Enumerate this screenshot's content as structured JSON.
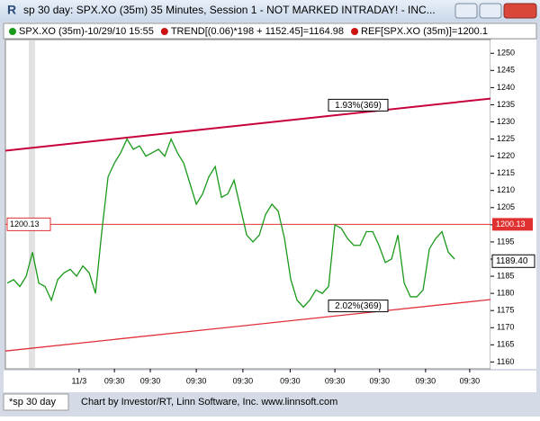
{
  "chart_data": {
    "type": "line",
    "window_title": "sp 30 day: SPX.XO (35m) 35 Minutes, Session 1 - NOT MARKED INTRADAY! - INC...",
    "legend_items": [
      {
        "text": "SPX.XO (35m)-10/29/10 15:55",
        "color": "#1a9a1a"
      },
      {
        "text": "TREND[(0.06)*198 + 1152.45]=1164.98",
        "color": "#cc1111"
      },
      {
        "text": "REF[SPX.XO (35m)]=1200.1",
        "color": "#cc1111"
      }
    ],
    "footer_tab": "*sp 30 day",
    "footer": "Chart by Investor/RT, Linn Software, Inc. www.linnsoft.com",
    "series": [
      {
        "name": "SPX.XO (35m)",
        "color": "#1a9a1a",
        "x": [
          0,
          1,
          2,
          3,
          4,
          5,
          6,
          7,
          8,
          9,
          10,
          11,
          12,
          13,
          14,
          15,
          16,
          17,
          18,
          19,
          20,
          21,
          22,
          23,
          24,
          25,
          26,
          27,
          28,
          29,
          30,
          31,
          32,
          33,
          34,
          35,
          36,
          37,
          38,
          39,
          40,
          41,
          42,
          43,
          44,
          45,
          46,
          47,
          48,
          49,
          50,
          51,
          52,
          53,
          54,
          55,
          56,
          57,
          58,
          59,
          60,
          61,
          62,
          63,
          64,
          65,
          66,
          67,
          68,
          69,
          70,
          71
        ],
        "values": [
          1183,
          1184,
          1182,
          1185,
          1192,
          1183,
          1182,
          1178,
          1184,
          1186,
          1187,
          1185,
          1188,
          1186,
          1180,
          1198,
          1214,
          1218,
          1221,
          1225,
          1222,
          1223,
          1220,
          1221,
          1222,
          1220,
          1225,
          1221,
          1218,
          1212,
          1206,
          1209,
          1214,
          1217,
          1208,
          1209,
          1213,
          1205,
          1197,
          1195,
          1197,
          1203,
          1206,
          1204,
          1196,
          1184,
          1178,
          1176,
          1178,
          1181,
          1180,
          1182,
          1200,
          1199,
          1196,
          1194,
          1194,
          1198,
          1198,
          1194,
          1189,
          1190,
          1197,
          1183,
          1179,
          1179,
          1181,
          1193,
          1196,
          1198,
          1192,
          1190
        ]
      }
    ],
    "trendlines": [
      {
        "label": "1.93%(369)",
        "x": [
          -0.3,
          76.7
        ],
        "y": [
          1221.6,
          1236.8
        ],
        "color": "#c8003c"
      },
      {
        "label": "2.02%(369)",
        "x": [
          -0.3,
          76.7
        ],
        "y": [
          1163.2,
          1178.2
        ],
        "color": "#e0303a"
      }
    ],
    "ref_line": {
      "value": 1200.13,
      "color": "#e03030"
    },
    "last_price": {
      "value": 1189.4,
      "label": "1189.40"
    },
    "xlim": [
      -0.3,
      76.7
    ],
    "xticks": [
      {
        "value": 11.4,
        "label": "11/3"
      },
      {
        "value": 17,
        "label": "09:30"
      },
      {
        "value": 22.7,
        "label": "09:30"
      },
      {
        "value": 30,
        "label": "09:30"
      },
      {
        "value": 37.4,
        "label": "09:30"
      },
      {
        "value": 44.9,
        "label": "09:30"
      },
      {
        "value": 52,
        "label": "09:30"
      },
      {
        "value": 59.1,
        "label": "09:30"
      },
      {
        "value": 66.4,
        "label": "09:30"
      },
      {
        "value": 73.4,
        "label": "09:30"
      }
    ],
    "ylim": [
      1158,
      1254
    ],
    "yticks": [
      1160,
      1165,
      1170,
      1175,
      1180,
      1185,
      1190,
      1195,
      1200,
      1205,
      1210,
      1215,
      1220,
      1225,
      1230,
      1235,
      1240,
      1245,
      1250
    ]
  }
}
